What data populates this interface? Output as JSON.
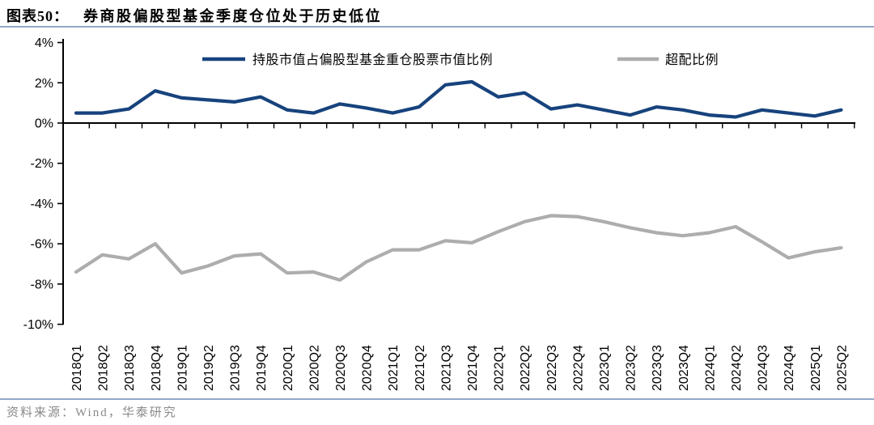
{
  "header": {
    "figure_label": "图表50：",
    "title": "券商股偏股型基金季度仓位处于历史低位"
  },
  "footer": {
    "source": "资料来源：Wind，华泰研究"
  },
  "colors": {
    "accent_rule": "#91a8c7",
    "axis": "#000000",
    "holdings_line": "#17437d",
    "overweight_line": "#adadad",
    "footer_text": "#8a8a8a"
  },
  "chart_data": {
    "type": "line",
    "title": "券商股偏股型基金季度仓位处于历史低位",
    "categories": [
      "2018Q1",
      "2018Q2",
      "2018Q3",
      "2018Q4",
      "2019Q1",
      "2019Q2",
      "2019Q3",
      "2019Q4",
      "2020Q1",
      "2020Q2",
      "2020Q3",
      "2020Q4",
      "2021Q1",
      "2021Q2",
      "2021Q3",
      "2021Q4",
      "2022Q1",
      "2022Q2",
      "2022Q3",
      "2022Q4",
      "2023Q1",
      "2023Q2",
      "2023Q3",
      "2023Q4",
      "2024Q1",
      "2024Q2",
      "2024Q3",
      "2024Q4",
      "2025Q1",
      "2025Q2"
    ],
    "series": [
      {
        "name": "持股市值占偏股型基金重仓股票市值比例",
        "key": "holdings-ratio",
        "color": "#17437d",
        "values": [
          0.5,
          0.5,
          0.7,
          1.6,
          1.25,
          1.15,
          1.05,
          1.3,
          0.65,
          0.5,
          0.95,
          0.75,
          0.5,
          0.8,
          1.9,
          2.05,
          1.3,
          1.5,
          0.7,
          0.9,
          0.65,
          0.4,
          0.8,
          0.65,
          0.4,
          0.3,
          0.65,
          0.5,
          0.35,
          0.65
        ]
      },
      {
        "name": "超配比例",
        "key": "overweight-ratio",
        "color": "#adadad",
        "values": [
          -7.4,
          -6.55,
          -6.75,
          -6.0,
          -7.45,
          -7.1,
          -6.6,
          -6.5,
          -7.45,
          -7.4,
          -7.8,
          -6.9,
          -6.3,
          -6.3,
          -5.85,
          -5.95,
          -5.4,
          -4.9,
          -4.6,
          -4.65,
          -4.9,
          -5.2,
          -5.45,
          -5.6,
          -5.45,
          -5.15,
          -5.9,
          -6.7,
          -6.4,
          -6.2
        ]
      }
    ],
    "ylim": [
      -10,
      4
    ],
    "ytick_step": 2,
    "ytick_suffix": "%",
    "grid": false,
    "legend_position": "top"
  }
}
